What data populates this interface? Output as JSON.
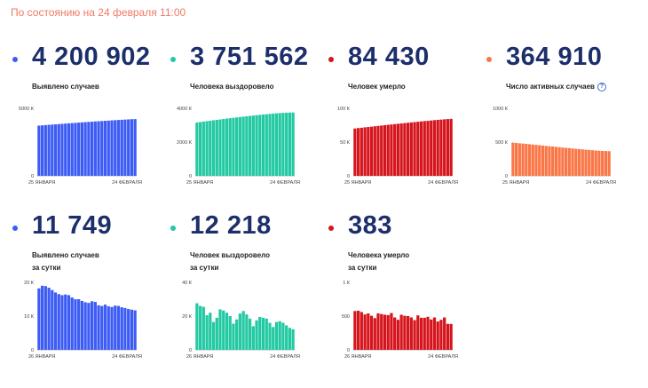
{
  "header": {
    "as_of": "По состоянию на 24 февраля 11:00"
  },
  "cards": [
    {
      "id": "cases-total",
      "value": "4 200 902",
      "label_lines": [
        "Выявлено случаев"
      ],
      "color": "#3d5cf5",
      "info_icon": false,
      "chart_data": {
        "type": "bar",
        "title": "",
        "ylim": [
          0,
          5000
        ],
        "ytick_labels": [
          "5000 К",
          "0"
        ],
        "yticks": [
          5000,
          0
        ],
        "x_start": "25 ЯНВАРЯ",
        "x_end": "24 ФЕВРАЛЯ",
        "values": [
          3720,
          3738,
          3757,
          3776,
          3794,
          3813,
          3832,
          3851,
          3870,
          3888,
          3906,
          3924,
          3942,
          3960,
          3977,
          3994,
          4011,
          4027,
          4044,
          4060,
          4076,
          4091,
          4107,
          4122,
          4137,
          4152,
          4167,
          4181,
          4195,
          4201
        ]
      }
    },
    {
      "id": "recovered-total",
      "value": "3 751 562",
      "label_lines": [
        "Человека выздоровело"
      ],
      "color": "#22c9a2",
      "info_icon": false,
      "chart_data": {
        "type": "bar",
        "title": "",
        "ylim": [
          0,
          4000
        ],
        "ytick_labels": [
          "4000 К",
          "2000 К",
          "0"
        ],
        "yticks": [
          4000,
          2000,
          0
        ],
        "x_start": "25 ЯНВАРЯ",
        "x_end": "24 ФЕВРАЛЯ",
        "values": [
          3160,
          3187,
          3213,
          3239,
          3265,
          3291,
          3316,
          3341,
          3366,
          3390,
          3414,
          3438,
          3461,
          3484,
          3507,
          3529,
          3551,
          3572,
          3593,
          3613,
          3633,
          3652,
          3670,
          3688,
          3704,
          3719,
          3731,
          3742,
          3748,
          3752
        ]
      }
    },
    {
      "id": "deaths-total",
      "value": "84 430",
      "label_lines": [
        "Человек умерло"
      ],
      "color": "#d6141c",
      "info_icon": false,
      "chart_data": {
        "type": "bar",
        "title": "",
        "ylim": [
          0,
          100
        ],
        "ytick_labels": [
          "100 К",
          "50 К",
          "0"
        ],
        "yticks": [
          100,
          50,
          0
        ],
        "x_start": "25 ЯНВАРЯ",
        "x_end": "24 ФЕВРАЛЯ",
        "values": [
          70.1,
          70.7,
          71.2,
          71.8,
          72.3,
          72.8,
          73.4,
          73.9,
          74.5,
          75.0,
          75.5,
          76.1,
          76.6,
          77.1,
          77.6,
          78.1,
          78.6,
          79.1,
          79.6,
          80.1,
          80.6,
          81.1,
          81.5,
          82.0,
          82.5,
          82.9,
          83.3,
          83.7,
          84.1,
          84.4
        ]
      }
    },
    {
      "id": "active-total",
      "value": "364 910",
      "label_lines": [
        "Число активных случаев"
      ],
      "color": "#fa7646",
      "info_icon": true,
      "chart_data": {
        "type": "bar",
        "title": "",
        "ylim": [
          0,
          1000
        ],
        "ytick_labels": [
          "1000 К",
          "500 К",
          "0"
        ],
        "yticks": [
          1000,
          500,
          0
        ],
        "x_start": "25 ЯНВАРЯ",
        "x_end": "24 ФЕВРАЛЯ",
        "values": [
          492,
          487,
          482,
          478,
          473,
          468,
          463,
          458,
          453,
          448,
          443,
          438,
          434,
          429,
          424,
          419,
          414,
          410,
          405,
          400,
          396,
          391,
          387,
          383,
          379,
          375,
          372,
          369,
          367,
          365
        ]
      }
    },
    {
      "id": "cases-daily",
      "value": "11 749",
      "label_lines": [
        "Выявлено случаев",
        "за сутки"
      ],
      "color": "#3d5cf5",
      "info_icon": false,
      "chart_data": {
        "type": "bar",
        "title": "",
        "ylim": [
          0,
          20
        ],
        "ytick_labels": [
          "20 К",
          "10 К",
          "0"
        ],
        "yticks": [
          20,
          10,
          0
        ],
        "x_start": "26 ЯНВАРЯ",
        "x_end": "24 ФЕВРАЛЯ",
        "values": [
          18.2,
          19.0,
          18.9,
          18.4,
          17.7,
          17.0,
          16.5,
          16.2,
          16.4,
          16.2,
          15.5,
          15.0,
          15.0,
          14.5,
          14.1,
          13.9,
          14.4,
          14.2,
          13.2,
          13.0,
          13.4,
          12.9,
          12.7,
          13.1,
          13.0,
          12.6,
          12.4,
          12.1,
          11.9,
          11.7
        ]
      }
    },
    {
      "id": "recovered-daily",
      "value": "12 218",
      "label_lines": [
        "Человек выздоровело",
        "за сутки"
      ],
      "color": "#22c9a2",
      "info_icon": false,
      "chart_data": {
        "type": "bar",
        "title": "",
        "ylim": [
          0,
          40
        ],
        "ytick_labels": [
          "40 К",
          "20 К",
          "0"
        ],
        "yticks": [
          40,
          20,
          0
        ],
        "x_start": "26 ЯНВАРЯ",
        "x_end": "24 ФЕВРАЛЯ",
        "values": [
          27.6,
          26.0,
          25.5,
          20.5,
          22.0,
          16.5,
          19.0,
          24.0,
          23.3,
          22.0,
          20.0,
          15.5,
          18.0,
          21.5,
          23.0,
          21.0,
          18.5,
          14.0,
          17.5,
          19.5,
          19.0,
          18.5,
          16.0,
          13.5,
          16.5,
          17.0,
          16.0,
          14.5,
          13.0,
          12.2
        ]
      }
    },
    {
      "id": "deaths-daily",
      "value": "383",
      "label_lines": [
        "Человека умерло",
        "за сутки"
      ],
      "color": "#d6141c",
      "info_icon": false,
      "chart_data": {
        "type": "bar",
        "title": "",
        "ylim": [
          0,
          1000
        ],
        "ytick_labels": [
          "1 К",
          "500",
          "0"
        ],
        "yticks": [
          1000,
          500,
          0
        ],
        "x_start": "26 ЯНВАРЯ",
        "x_end": "24 ФЕВРАЛЯ",
        "values": [
          575,
          580,
          560,
          525,
          540,
          505,
          470,
          540,
          530,
          520,
          515,
          545,
          480,
          445,
          520,
          505,
          500,
          480,
          440,
          510,
          475,
          475,
          490,
          450,
          480,
          420,
          445,
          480,
          385,
          383
        ]
      }
    }
  ]
}
